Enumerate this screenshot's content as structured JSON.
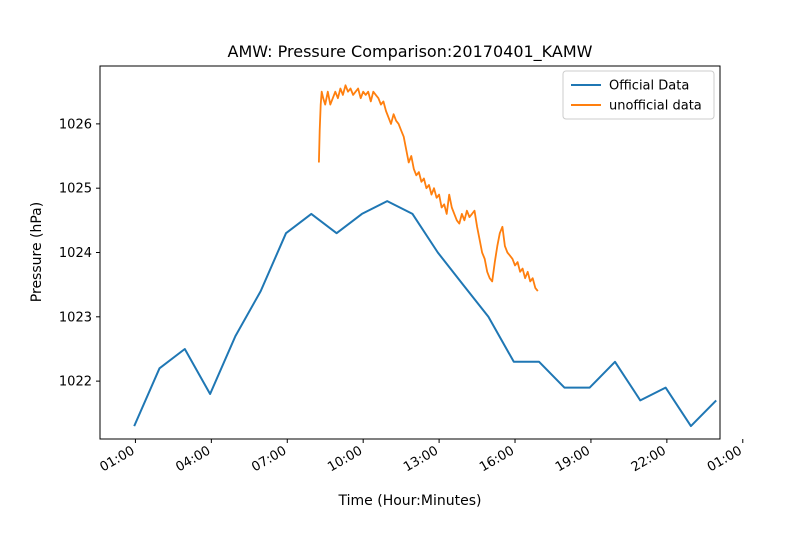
{
  "chart_data": {
    "type": "line",
    "title": "AMW: Pressure Comparison:20170401_KAMW",
    "xlabel": "Time (Hour:Minutes)",
    "ylabel": "Pressure (hPa)",
    "x_unit": "hour of day",
    "xlim": [
      -0.4,
      24.1
    ],
    "ylim": [
      1021.1,
      1026.9
    ],
    "x_ticks": [
      1,
      4,
      7,
      10,
      13,
      16,
      19,
      22,
      25
    ],
    "x_tick_labels": [
      "01:00",
      "04:00",
      "07:00",
      "10:00",
      "13:00",
      "16:00",
      "19:00",
      "22:00",
      "01:00"
    ],
    "y_ticks": [
      1022,
      1023,
      1024,
      1025,
      1026
    ],
    "y_tick_labels": [
      "1022",
      "1023",
      "1024",
      "1025",
      "1026"
    ],
    "grid": false,
    "legend_position": "top-right",
    "series": [
      {
        "name": "Official Data",
        "color": "#1f77b4",
        "x": [
          0.95,
          1.95,
          2.95,
          3.95,
          4.95,
          5.95,
          6.95,
          7.95,
          8.95,
          9.95,
          10.95,
          11.95,
          12.95,
          13.95,
          14.95,
          15.95,
          16.95,
          17.95,
          18.95,
          19.95,
          20.95,
          21.95,
          22.95,
          23.95
        ],
        "y": [
          1021.3,
          1022.2,
          1022.5,
          1021.8,
          1022.7,
          1023.4,
          1024.3,
          1024.6,
          1024.3,
          1024.6,
          1024.8,
          1024.6,
          1024.0,
          1023.5,
          1023.0,
          1022.3,
          1022.3,
          1021.9,
          1021.9,
          1022.3,
          1021.7,
          1021.9,
          1021.3,
          1021.7
        ]
      },
      {
        "name": "unofficial data",
        "color": "#ff7f0e",
        "x": [
          8.25,
          8.28,
          8.32,
          8.36,
          8.42,
          8.5,
          8.6,
          8.7,
          8.8,
          8.9,
          9.0,
          9.1,
          9.2,
          9.3,
          9.4,
          9.5,
          9.6,
          9.7,
          9.8,
          9.9,
          10.0,
          10.1,
          10.2,
          10.3,
          10.4,
          10.5,
          10.6,
          10.7,
          10.8,
          10.9,
          11.0,
          11.1,
          11.2,
          11.3,
          11.4,
          11.5,
          11.6,
          11.7,
          11.8,
          11.9,
          12.0,
          12.1,
          12.2,
          12.3,
          12.4,
          12.5,
          12.6,
          12.7,
          12.8,
          12.9,
          13.0,
          13.1,
          13.2,
          13.3,
          13.4,
          13.5,
          13.6,
          13.7,
          13.8,
          13.9,
          14.0,
          14.1,
          14.2,
          14.3,
          14.4,
          14.5,
          14.6,
          14.7,
          14.8,
          14.9,
          15.0,
          15.1,
          15.2,
          15.3,
          15.4,
          15.5,
          15.6,
          15.7,
          15.8,
          15.9,
          16.0,
          16.1,
          16.2,
          16.3,
          16.4,
          16.5,
          16.6,
          16.7,
          16.8,
          16.9
        ],
        "y": [
          1025.4,
          1025.9,
          1026.3,
          1026.5,
          1026.4,
          1026.3,
          1026.5,
          1026.3,
          1026.4,
          1026.5,
          1026.4,
          1026.55,
          1026.45,
          1026.6,
          1026.5,
          1026.55,
          1026.45,
          1026.5,
          1026.55,
          1026.4,
          1026.5,
          1026.45,
          1026.5,
          1026.35,
          1026.5,
          1026.45,
          1026.4,
          1026.3,
          1026.35,
          1026.2,
          1026.1,
          1026.0,
          1026.15,
          1026.05,
          1026.0,
          1025.9,
          1025.8,
          1025.6,
          1025.4,
          1025.5,
          1025.3,
          1025.2,
          1025.25,
          1025.1,
          1025.15,
          1025.0,
          1025.05,
          1024.9,
          1025.0,
          1024.85,
          1024.9,
          1024.7,
          1024.75,
          1024.6,
          1024.9,
          1024.7,
          1024.6,
          1024.5,
          1024.45,
          1024.6,
          1024.5,
          1024.65,
          1024.55,
          1024.6,
          1024.65,
          1024.4,
          1024.2,
          1024.0,
          1023.9,
          1023.7,
          1023.6,
          1023.55,
          1023.85,
          1024.1,
          1024.3,
          1024.4,
          1024.1,
          1024.0,
          1023.95,
          1023.9,
          1023.8,
          1023.85,
          1023.7,
          1023.75,
          1023.6,
          1023.7,
          1023.55,
          1023.6,
          1023.45,
          1023.4
        ]
      }
    ]
  }
}
